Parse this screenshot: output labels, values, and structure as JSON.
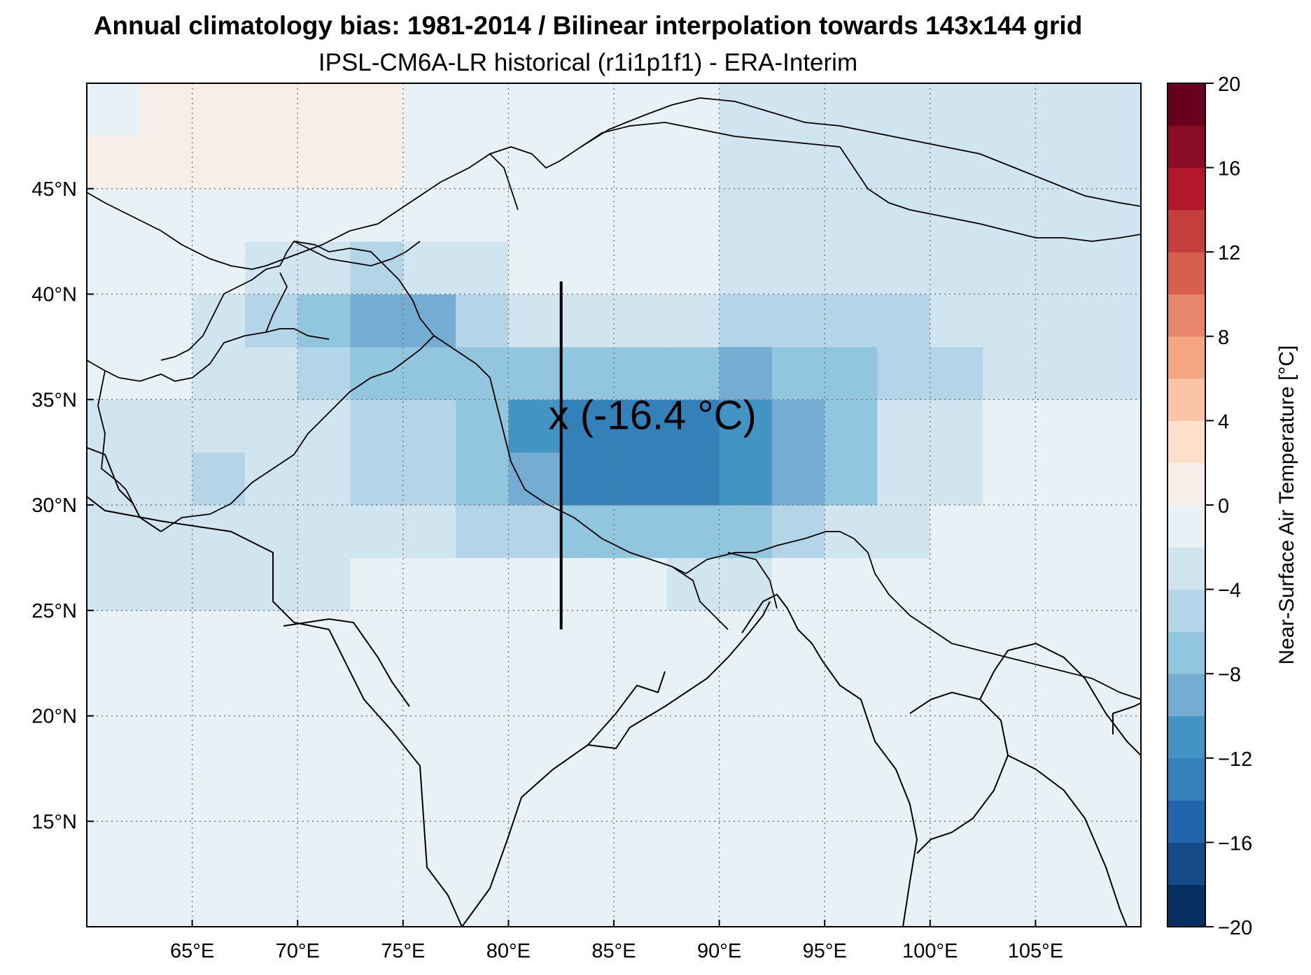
{
  "title": "Annual climatology bias: 1981-2014 / Bilinear interpolation towards 143x144 grid",
  "subtitle": "IPSL-CM6A-LR historical (r1i1p1f1) - ERA-Interim",
  "map": {
    "lon_range": [
      60,
      110
    ],
    "lat_range": [
      10,
      50
    ],
    "lon_ticks": [
      {
        "value": 65,
        "label": "65°E"
      },
      {
        "value": 70,
        "label": "70°E"
      },
      {
        "value": 75,
        "label": "75°E"
      },
      {
        "value": 80,
        "label": "80°E"
      },
      {
        "value": 85,
        "label": "85°E"
      },
      {
        "value": 90,
        "label": "90°E"
      },
      {
        "value": 95,
        "label": "95°E"
      },
      {
        "value": 100,
        "label": "100°E"
      },
      {
        "value": 105,
        "label": "105°E"
      }
    ],
    "lat_ticks": [
      {
        "value": 15,
        "label": "15°N"
      },
      {
        "value": 20,
        "label": "20°N"
      },
      {
        "value": 25,
        "label": "25°N"
      },
      {
        "value": 30,
        "label": "30°N"
      },
      {
        "value": 35,
        "label": "35°N"
      },
      {
        "value": 40,
        "label": "40°N"
      },
      {
        "value": 45,
        "label": "45°N"
      }
    ],
    "grid": true,
    "marker": {
      "lon": 82.5,
      "lat": 34.2,
      "label": "x (-16.4 °C)",
      "vline_lat": [
        24.1,
        40.6
      ]
    }
  },
  "colorbar": {
    "label": "Near-Surface Air Temperature [°C]",
    "range": [
      -20,
      20
    ],
    "ticks": [
      {
        "value": 20,
        "label": "20"
      },
      {
        "value": 16,
        "label": "16"
      },
      {
        "value": 12,
        "label": "12"
      },
      {
        "value": 8,
        "label": "8"
      },
      {
        "value": 4,
        "label": "4"
      },
      {
        "value": 0,
        "label": "0"
      },
      {
        "value": -4,
        "label": "−4"
      },
      {
        "value": -8,
        "label": "−8"
      },
      {
        "value": -12,
        "label": "−12"
      },
      {
        "value": -16,
        "label": "−16"
      },
      {
        "value": -20,
        "label": "−20"
      }
    ],
    "colors": [
      "#053061",
      "#134c87",
      "#2166ac",
      "#3480b9",
      "#4393c3",
      "#74add1",
      "#92c5de",
      "#b4d5e8",
      "#d1e5f0",
      "#e8f1f5",
      "#f7eeea",
      "#fde0cc",
      "#fbc5a5",
      "#f4a582",
      "#e7866a",
      "#d6604d",
      "#c43e3d",
      "#b2182b",
      "#8b0d25",
      "#67001f"
    ]
  }
}
